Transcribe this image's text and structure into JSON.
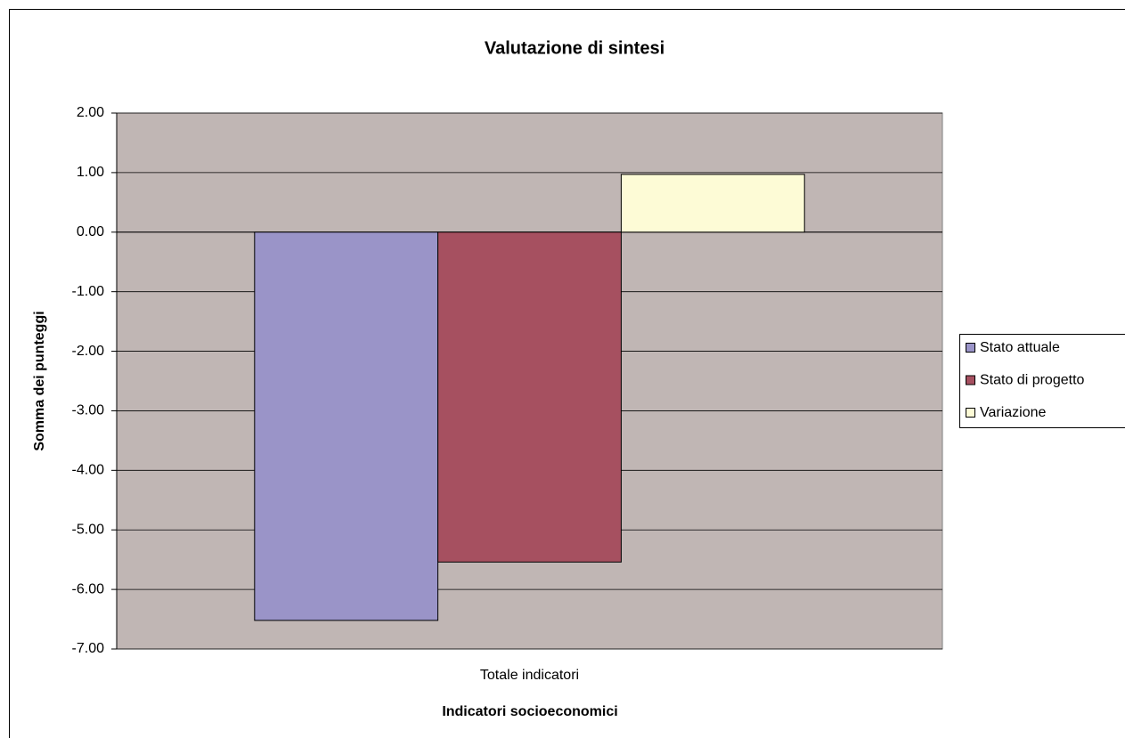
{
  "chart_data": {
    "type": "bar",
    "title": "Valutazione di sintesi",
    "x_label": "Indicatori socioeconomici",
    "y_label": "Somma dei punteggi",
    "categories": [
      "Totale indicatori"
    ],
    "series": [
      {
        "name": "Stato attuale",
        "color": "#9a94c8",
        "values": [
          -6.52
        ]
      },
      {
        "name": "Stato di progetto",
        "color": "#a65060",
        "values": [
          -5.54
        ]
      },
      {
        "name": "Variazione",
        "color": "#fdfbd6",
        "values": [
          0.97
        ]
      }
    ],
    "ylim": [
      -7,
      2
    ],
    "yticks": [
      {
        "value": -7,
        "label": "-7.00"
      },
      {
        "value": -6,
        "label": "-6.00"
      },
      {
        "value": -5,
        "label": "-5.00"
      },
      {
        "value": -4,
        "label": "-4.00"
      },
      {
        "value": -3,
        "label": "-3.00"
      },
      {
        "value": -2,
        "label": "-2.00"
      },
      {
        "value": -1,
        "label": "-1.00"
      },
      {
        "value": 0,
        "label": "0.00"
      },
      {
        "value": 1,
        "label": "1.00"
      },
      {
        "value": 2,
        "label": "2.00"
      }
    ],
    "grid": true,
    "legend": "right"
  }
}
